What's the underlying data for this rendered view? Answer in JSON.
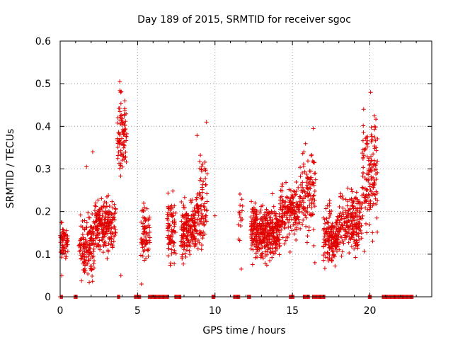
{
  "chart_data": {
    "type": "scatter",
    "title": "Day 189 of 2015, SRMTID for receiver sgoc",
    "xlabel": "GPS time / hours",
    "ylabel": "SRMTID / TECUs",
    "xlim": [
      0,
      24
    ],
    "ylim": [
      0,
      0.6
    ],
    "x_ticks": [
      0,
      5,
      10,
      15,
      20
    ],
    "x_tick_labels": [
      "0",
      "5",
      "10",
      "15",
      "20"
    ],
    "y_ticks": [
      0,
      0.1,
      0.2,
      0.3,
      0.4,
      0.5,
      0.6
    ],
    "y_tick_labels": [
      "0",
      "0.1",
      "0.2",
      "0.3",
      "0.4",
      "0.5",
      "0.6"
    ],
    "grid": true,
    "marker": "+",
    "color": "#e00000",
    "clusters": [
      {
        "x_start": 0.0,
        "x_end": 0.5,
        "y_mean": 0.13,
        "y_spread": 0.03,
        "n": 60
      },
      {
        "x_start": 1.2,
        "x_end": 2.2,
        "y_mean": 0.12,
        "y_spread": 0.06,
        "n": 140
      },
      {
        "x_start": 2.2,
        "x_end": 3.6,
        "y_mean": 0.17,
        "y_spread": 0.05,
        "n": 200
      },
      {
        "x_start": 3.7,
        "x_end": 4.3,
        "y_mean": 0.38,
        "y_spread": 0.07,
        "n": 90
      },
      {
        "x_start": 5.2,
        "x_end": 5.8,
        "y_mean": 0.15,
        "y_spread": 0.05,
        "n": 70
      },
      {
        "x_start": 6.9,
        "x_end": 7.5,
        "y_mean": 0.16,
        "y_spread": 0.07,
        "n": 80
      },
      {
        "x_start": 7.8,
        "x_end": 8.8,
        "y_mean": 0.16,
        "y_spread": 0.05,
        "n": 170
      },
      {
        "x_start": 8.8,
        "x_end": 9.5,
        "y_mean": 0.22,
        "y_spread": 0.09,
        "n": 90
      },
      {
        "x_start": 11.5,
        "x_end": 11.8,
        "y_mean": 0.2,
        "y_spread": 0.07,
        "n": 15
      },
      {
        "x_start": 12.3,
        "x_end": 14.2,
        "y_mean": 0.15,
        "y_spread": 0.05,
        "n": 360
      },
      {
        "x_start": 14.2,
        "x_end": 15.0,
        "y_mean": 0.2,
        "y_spread": 0.05,
        "n": 100
      },
      {
        "x_start": 15.0,
        "x_end": 15.5,
        "y_mean": 0.2,
        "y_spread": 0.05,
        "n": 60
      },
      {
        "x_start": 15.5,
        "x_end": 16.5,
        "y_mean": 0.25,
        "y_spread": 0.09,
        "n": 110
      },
      {
        "x_start": 17.0,
        "x_end": 18.0,
        "y_mean": 0.14,
        "y_spread": 0.05,
        "n": 160
      },
      {
        "x_start": 18.0,
        "x_end": 19.5,
        "y_mean": 0.18,
        "y_spread": 0.06,
        "n": 200
      },
      {
        "x_start": 19.5,
        "x_end": 20.5,
        "y_mean": 0.28,
        "y_spread": 0.11,
        "n": 140
      }
    ],
    "outliers": [
      {
        "x": 3.85,
        "y": 0.505
      },
      {
        "x": 3.9,
        "y": 0.48
      },
      {
        "x": 3.92,
        "y": 0.05
      },
      {
        "x": 0.1,
        "y": 0.05
      },
      {
        "x": 20.05,
        "y": 0.48
      },
      {
        "x": 19.6,
        "y": 0.44
      },
      {
        "x": 16.35,
        "y": 0.395
      },
      {
        "x": 9.45,
        "y": 0.41
      },
      {
        "x": 1.7,
        "y": 0.305
      },
      {
        "x": 2.1,
        "y": 0.34
      },
      {
        "x": 10.0,
        "y": 0.19
      },
      {
        "x": 11.7,
        "y": 0.065
      },
      {
        "x": 5.25,
        "y": 0.03
      },
      {
        "x": 14.85,
        "y": 0.105
      },
      {
        "x": 16.45,
        "y": 0.08
      },
      {
        "x": 20.3,
        "y": 0.4
      },
      {
        "x": 20.4,
        "y": 0.35
      }
    ],
    "zero_segments": [
      [
        0.0,
        0.15
      ],
      [
        0.9,
        1.1
      ],
      [
        3.7,
        3.85
      ],
      [
        4.8,
        5.2
      ],
      [
        5.7,
        7.0
      ],
      [
        7.4,
        7.8
      ],
      [
        9.8,
        10.0
      ],
      [
        11.2,
        11.6
      ],
      [
        12.1,
        12.3
      ],
      [
        14.8,
        15.1
      ],
      [
        15.7,
        16.1
      ],
      [
        16.3,
        17.1
      ],
      [
        19.9,
        20.1
      ],
      [
        20.8,
        22.8
      ]
    ]
  }
}
